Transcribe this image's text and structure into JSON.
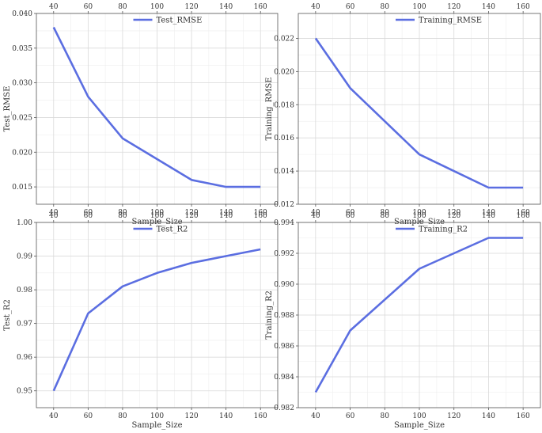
{
  "chart_data": [
    {
      "type": "line",
      "x": [
        40,
        60,
        80,
        100,
        120,
        140,
        160
      ],
      "series": [
        {
          "name": "Test_RMSE",
          "values": [
            0.038,
            0.028,
            0.022,
            0.019,
            0.016,
            0.015,
            0.015
          ]
        }
      ],
      "xlabel": "Sample_Size",
      "ylabel": "Test_RMSE",
      "xlim": [
        30,
        170
      ],
      "ylim": [
        0.0125,
        0.04
      ],
      "xticks": [
        40,
        60,
        80,
        100,
        120,
        140,
        160
      ],
      "yticks": [
        0.015,
        0.02,
        0.025,
        0.03,
        0.035,
        0.04
      ],
      "ytick_labels": [
        "0.015",
        "0.020",
        "0.025",
        "0.030",
        "0.035",
        "0.040"
      ],
      "grid": true,
      "legend": "top-center",
      "color": "#5b6ee1"
    },
    {
      "type": "line",
      "x": [
        40,
        60,
        80,
        100,
        120,
        140,
        160
      ],
      "series": [
        {
          "name": "Training_RMSE",
          "values": [
            0.022,
            0.019,
            0.017,
            0.015,
            0.014,
            0.013,
            0.013
          ]
        }
      ],
      "xlabel": "Sample_Size",
      "ylabel": "Training_RMSE",
      "xlim": [
        30,
        170
      ],
      "ylim": [
        0.012,
        0.0235
      ],
      "xticks": [
        40,
        60,
        80,
        100,
        120,
        140,
        160
      ],
      "yticks": [
        0.012,
        0.014,
        0.016,
        0.018,
        0.02,
        0.022
      ],
      "ytick_labels": [
        "0.012",
        "0.014",
        "0.016",
        "0.018",
        "0.020",
        "0.022"
      ],
      "grid": true,
      "legend": "top-center",
      "color": "#5b6ee1"
    },
    {
      "type": "line",
      "x": [
        40,
        60,
        80,
        100,
        120,
        140,
        160
      ],
      "series": [
        {
          "name": "Test_R2",
          "values": [
            0.95,
            0.973,
            0.981,
            0.985,
            0.988,
            0.99,
            0.992
          ]
        }
      ],
      "xlabel": "Sample_Size",
      "ylabel": "Test_R2",
      "xlim": [
        30,
        170
      ],
      "ylim": [
        0.945,
        1.0
      ],
      "xticks": [
        40,
        60,
        80,
        100,
        120,
        140,
        160
      ],
      "yticks": [
        0.95,
        0.96,
        0.97,
        0.98,
        0.99,
        1.0
      ],
      "ytick_labels": [
        "0.95",
        "0.96",
        "0.97",
        "0.98",
        "0.99",
        "1.00"
      ],
      "grid": true,
      "legend": "top-center",
      "color": "#5b6ee1"
    },
    {
      "type": "line",
      "x": [
        40,
        60,
        100,
        140,
        160
      ],
      "series": [
        {
          "name": "Training_R2",
          "values": [
            0.983,
            0.987,
            0.991,
            0.993,
            0.993
          ]
        }
      ],
      "xlabel": "Sample_Size",
      "ylabel": "Training_R2",
      "xlim": [
        30,
        170
      ],
      "ylim": [
        0.982,
        0.994
      ],
      "xticks": [
        40,
        60,
        80,
        100,
        120,
        140,
        160
      ],
      "yticks": [
        0.982,
        0.984,
        0.986,
        0.988,
        0.99,
        0.992,
        0.994
      ],
      "ytick_labels": [
        "0.982",
        "0.984",
        "0.986",
        "0.988",
        "0.990",
        "0.992",
        "0.994"
      ],
      "grid": true,
      "legend": "top-center",
      "color": "#5b6ee1"
    }
  ]
}
